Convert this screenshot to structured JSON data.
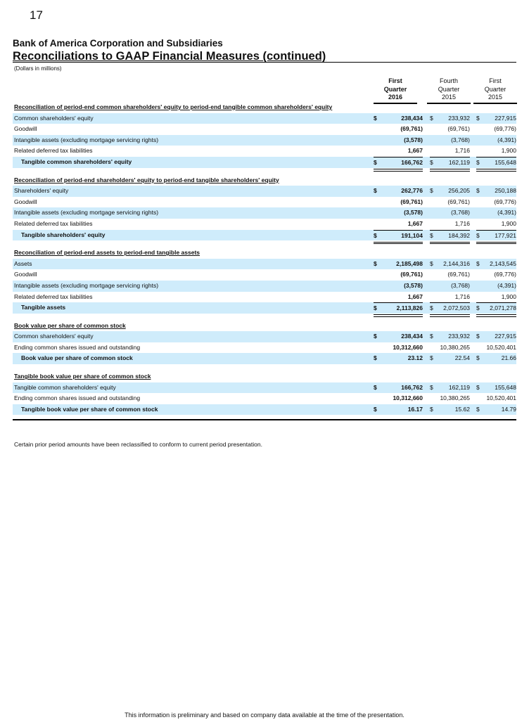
{
  "page_number": "17",
  "company": "Bank of America Corporation and Subsidiaries",
  "title": "Reconciliations to GAAP Financial Measures (continued)",
  "units": "(Dollars in millions)",
  "columns": [
    {
      "line1": "First",
      "line2": "Quarter",
      "line3": "2016",
      "bold": true
    },
    {
      "line1": "Fourth",
      "line2": "Quarter",
      "line3": "2015",
      "bold": false
    },
    {
      "line1": "First",
      "line2": "Quarter",
      "line3": "2015",
      "bold": false
    }
  ],
  "sections": [
    {
      "heading": "Reconciliation of period-end common shareholders' equity to period-end tangible common shareholders' equity",
      "rows": [
        {
          "label": "Common shareholders' equity",
          "values": [
            "238,434",
            "233,932",
            "227,915"
          ],
          "dollar": true
        },
        {
          "label": "Goodwill",
          "values": [
            "(69,761)",
            "(69,761)",
            "(69,776)"
          ]
        },
        {
          "label": "Intangible assets (excluding mortgage servicing rights)",
          "values": [
            "(3,578)",
            "(3,768)",
            "(4,391)"
          ]
        },
        {
          "label": "Related deferred tax liabilities",
          "values": [
            "1,667",
            "1,716",
            "1,900"
          ]
        },
        {
          "label": "Tangible common shareholders' equity",
          "values": [
            "166,762",
            "162,119",
            "155,648"
          ],
          "dollar": true,
          "total": true,
          "lined": true
        }
      ]
    },
    {
      "heading": "Reconciliation of period-end shareholders' equity to period-end tangible shareholders' equity",
      "rows": [
        {
          "label": "Shareholders' equity",
          "values": [
            "262,776",
            "256,205",
            "250,188"
          ],
          "dollar": true
        },
        {
          "label": "Goodwill",
          "values": [
            "(69,761)",
            "(69,761)",
            "(69,776)"
          ]
        },
        {
          "label": "Intangible assets (excluding mortgage servicing rights)",
          "values": [
            "(3,578)",
            "(3,768)",
            "(4,391)"
          ]
        },
        {
          "label": "Related deferred tax liabilities",
          "values": [
            "1,667",
            "1,716",
            "1,900"
          ]
        },
        {
          "label": "Tangible shareholders' equity",
          "values": [
            "191,104",
            "184,392",
            "177,921"
          ],
          "dollar": true,
          "total": true,
          "lined": true
        }
      ]
    },
    {
      "heading": "Reconciliation of period-end assets to period-end tangible assets",
      "rows": [
        {
          "label": "Assets",
          "values": [
            "2,185,498",
            "2,144,316",
            "2,143,545"
          ],
          "dollar": true
        },
        {
          "label": "Goodwill",
          "values": [
            "(69,761)",
            "(69,761)",
            "(69,776)"
          ]
        },
        {
          "label": "Intangible assets (excluding mortgage servicing rights)",
          "values": [
            "(3,578)",
            "(3,768)",
            "(4,391)"
          ]
        },
        {
          "label": "Related deferred tax liabilities",
          "values": [
            "1,667",
            "1,716",
            "1,900"
          ]
        },
        {
          "label": "Tangible assets",
          "values": [
            "2,113,826",
            "2,072,503",
            "2,071,278"
          ],
          "dollar": true,
          "total": true,
          "lined": true
        }
      ]
    },
    {
      "heading": "Book value per share of common stock",
      "rows": [
        {
          "label": "Common shareholders' equity",
          "values": [
            "238,434",
            "233,932",
            "227,915"
          ],
          "dollar": true
        },
        {
          "label": "Ending common shares issued and outstanding",
          "values": [
            "10,312,660",
            "10,380,265",
            "10,520,401"
          ]
        },
        {
          "label": "Book value per share of common stock",
          "values": [
            "23.12",
            "22.54",
            "21.66"
          ],
          "dollar": true,
          "total": true
        }
      ]
    },
    {
      "heading": "Tangible book value per share of common stock",
      "rows": [
        {
          "label": "Tangible common shareholders' equity",
          "values": [
            "166,762",
            "162,119",
            "155,648"
          ],
          "dollar": true
        },
        {
          "label": "Ending common shares issued and outstanding",
          "values": [
            "10,312,660",
            "10,380,265",
            "10,520,401"
          ]
        },
        {
          "label": "Tangible book value per share of common stock",
          "values": [
            "16.17",
            "15.62",
            "14.79"
          ],
          "dollar": true,
          "total": true
        }
      ]
    }
  ],
  "currency_symbol": "$",
  "note": "Certain prior period amounts have been reclassified to conform to current period presentation.",
  "footer": "This information is preliminary and based on company data available at the time of the presentation.",
  "colors": {
    "row_highlight": "#cfecfb"
  }
}
